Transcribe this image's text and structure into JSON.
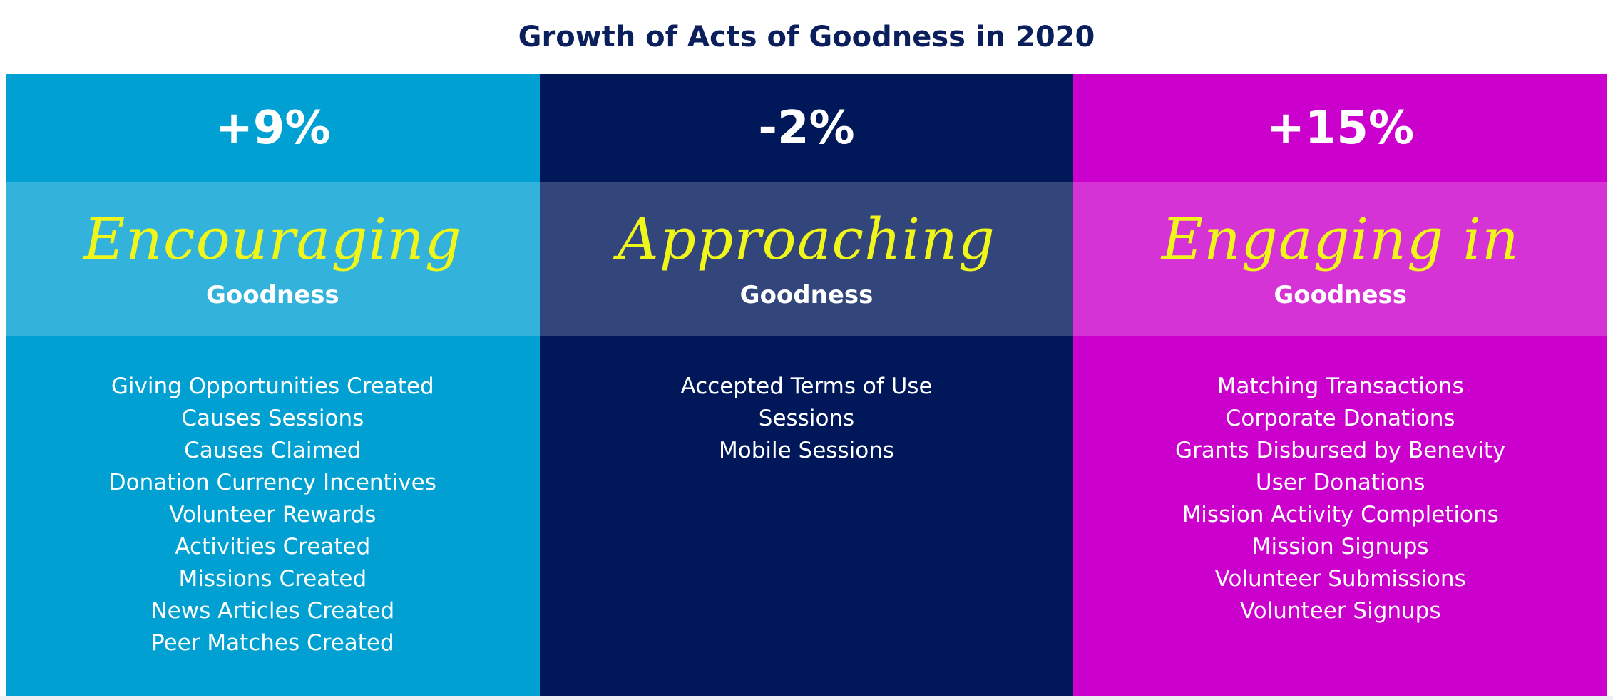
{
  "title": "Growth of Acts of Goodness in 2020",
  "columns": [
    {
      "percent": "+9%",
      "heading": "Encouraging",
      "subheading": "Goodness",
      "color": "#00a0d2",
      "items": [
        "Giving Opportunities Created",
        "Causes Sessions",
        "Causes Claimed",
        "Donation Currency Incentives",
        "Volunteer Rewards",
        "Activities Created",
        "Missions Created",
        "News Articles Created",
        "Peer Matches Created"
      ]
    },
    {
      "percent": "-2%",
      "heading": "Approaching",
      "subheading": "Goodness",
      "color": "#00185a",
      "items": [
        "Accepted Terms of Use",
        "Sessions",
        "Mobile Sessions"
      ]
    },
    {
      "percent": "+15%",
      "heading": "Engaging in",
      "subheading": "Goodness",
      "color": "#cc00cc",
      "items": [
        "Matching Transactions",
        "Corporate Donations",
        "Grants Disbursed by Benevity",
        "User Donations",
        "Mission Activity Completions",
        "Mission Signups",
        "Volunteer Submissions",
        "Volunteer Signups"
      ]
    }
  ]
}
